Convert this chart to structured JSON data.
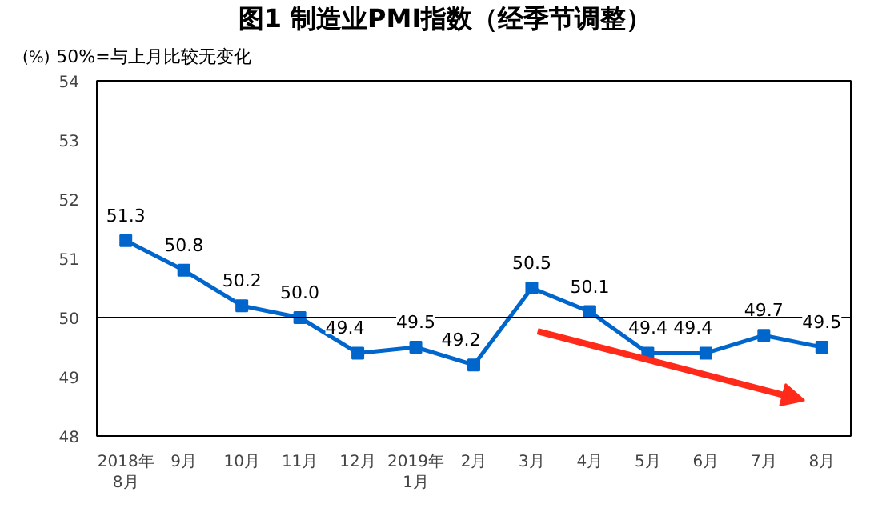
{
  "chart_data": {
    "type": "line",
    "title": "图1  制造业PMI指数（经季节调整）",
    "subtitle": "50%=与上月比较无变化",
    "ylabel": "(%)",
    "categories": [
      "2018年\n8月",
      "9月",
      "10月",
      "11月",
      "12月",
      "2019年\n1月",
      "2月",
      "3月",
      "4月",
      "5月",
      "6月",
      "7月",
      "8月"
    ],
    "series": [
      {
        "color": "#0066cc",
        "values": [
          51.3,
          50.8,
          50.2,
          50.0,
          49.4,
          49.5,
          49.2,
          50.5,
          50.1,
          49.4,
          49.4,
          49.7,
          49.5
        ]
      }
    ],
    "value_labels": [
      "51.3",
      "50.8",
      "50.2",
      "50.0",
      "49.4",
      "49.5",
      "49.2",
      "50.5",
      "50.1",
      "49.4",
      "49.4",
      "49.7",
      "49.5"
    ],
    "ylim": [
      48,
      54
    ],
    "yticks": [
      48,
      49,
      50,
      51,
      52,
      53,
      54
    ],
    "marker": "square",
    "line_style": "solid",
    "grid": false,
    "ref_lines": [
      {
        "axis": "y",
        "value": 50,
        "color": "#000000"
      }
    ]
  }
}
